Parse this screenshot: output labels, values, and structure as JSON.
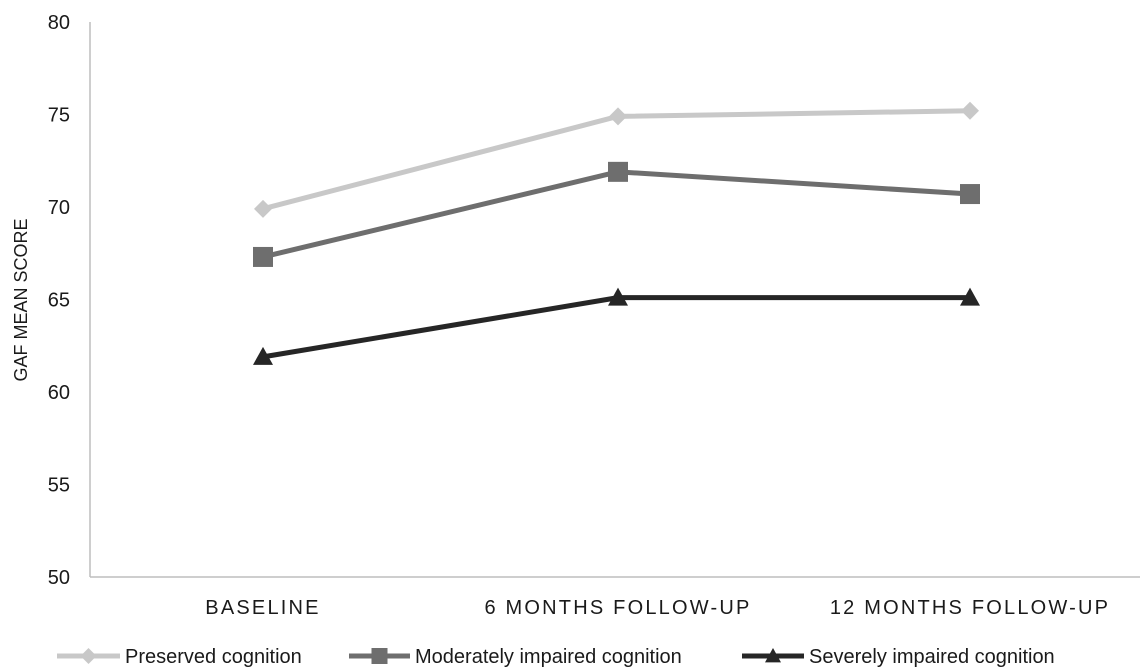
{
  "chart_data": {
    "type": "line",
    "categories": [
      "BASELINE",
      "6 MONTHS FOLLOW-UP",
      "12 MONTHS FOLLOW-UP"
    ],
    "ylabel": "GAF MEAN SCORE",
    "xlabel": "",
    "ylim": [
      50,
      80
    ],
    "yticks": [
      50,
      55,
      60,
      65,
      70,
      75,
      80
    ],
    "grid": false,
    "legend_position": "bottom",
    "series": [
      {
        "name": "Preserved cognition",
        "values": [
          69.9,
          74.9,
          75.2
        ],
        "color": "#c8c8c8",
        "marker": "diamond"
      },
      {
        "name": "Moderately impaired cognition",
        "values": [
          67.3,
          71.9,
          70.7
        ],
        "color": "#6e6e6e",
        "marker": "square"
      },
      {
        "name": "Severely impaired cognition",
        "values": [
          61.9,
          65.1,
          65.1
        ],
        "color": "#262626",
        "marker": "triangle"
      }
    ]
  }
}
